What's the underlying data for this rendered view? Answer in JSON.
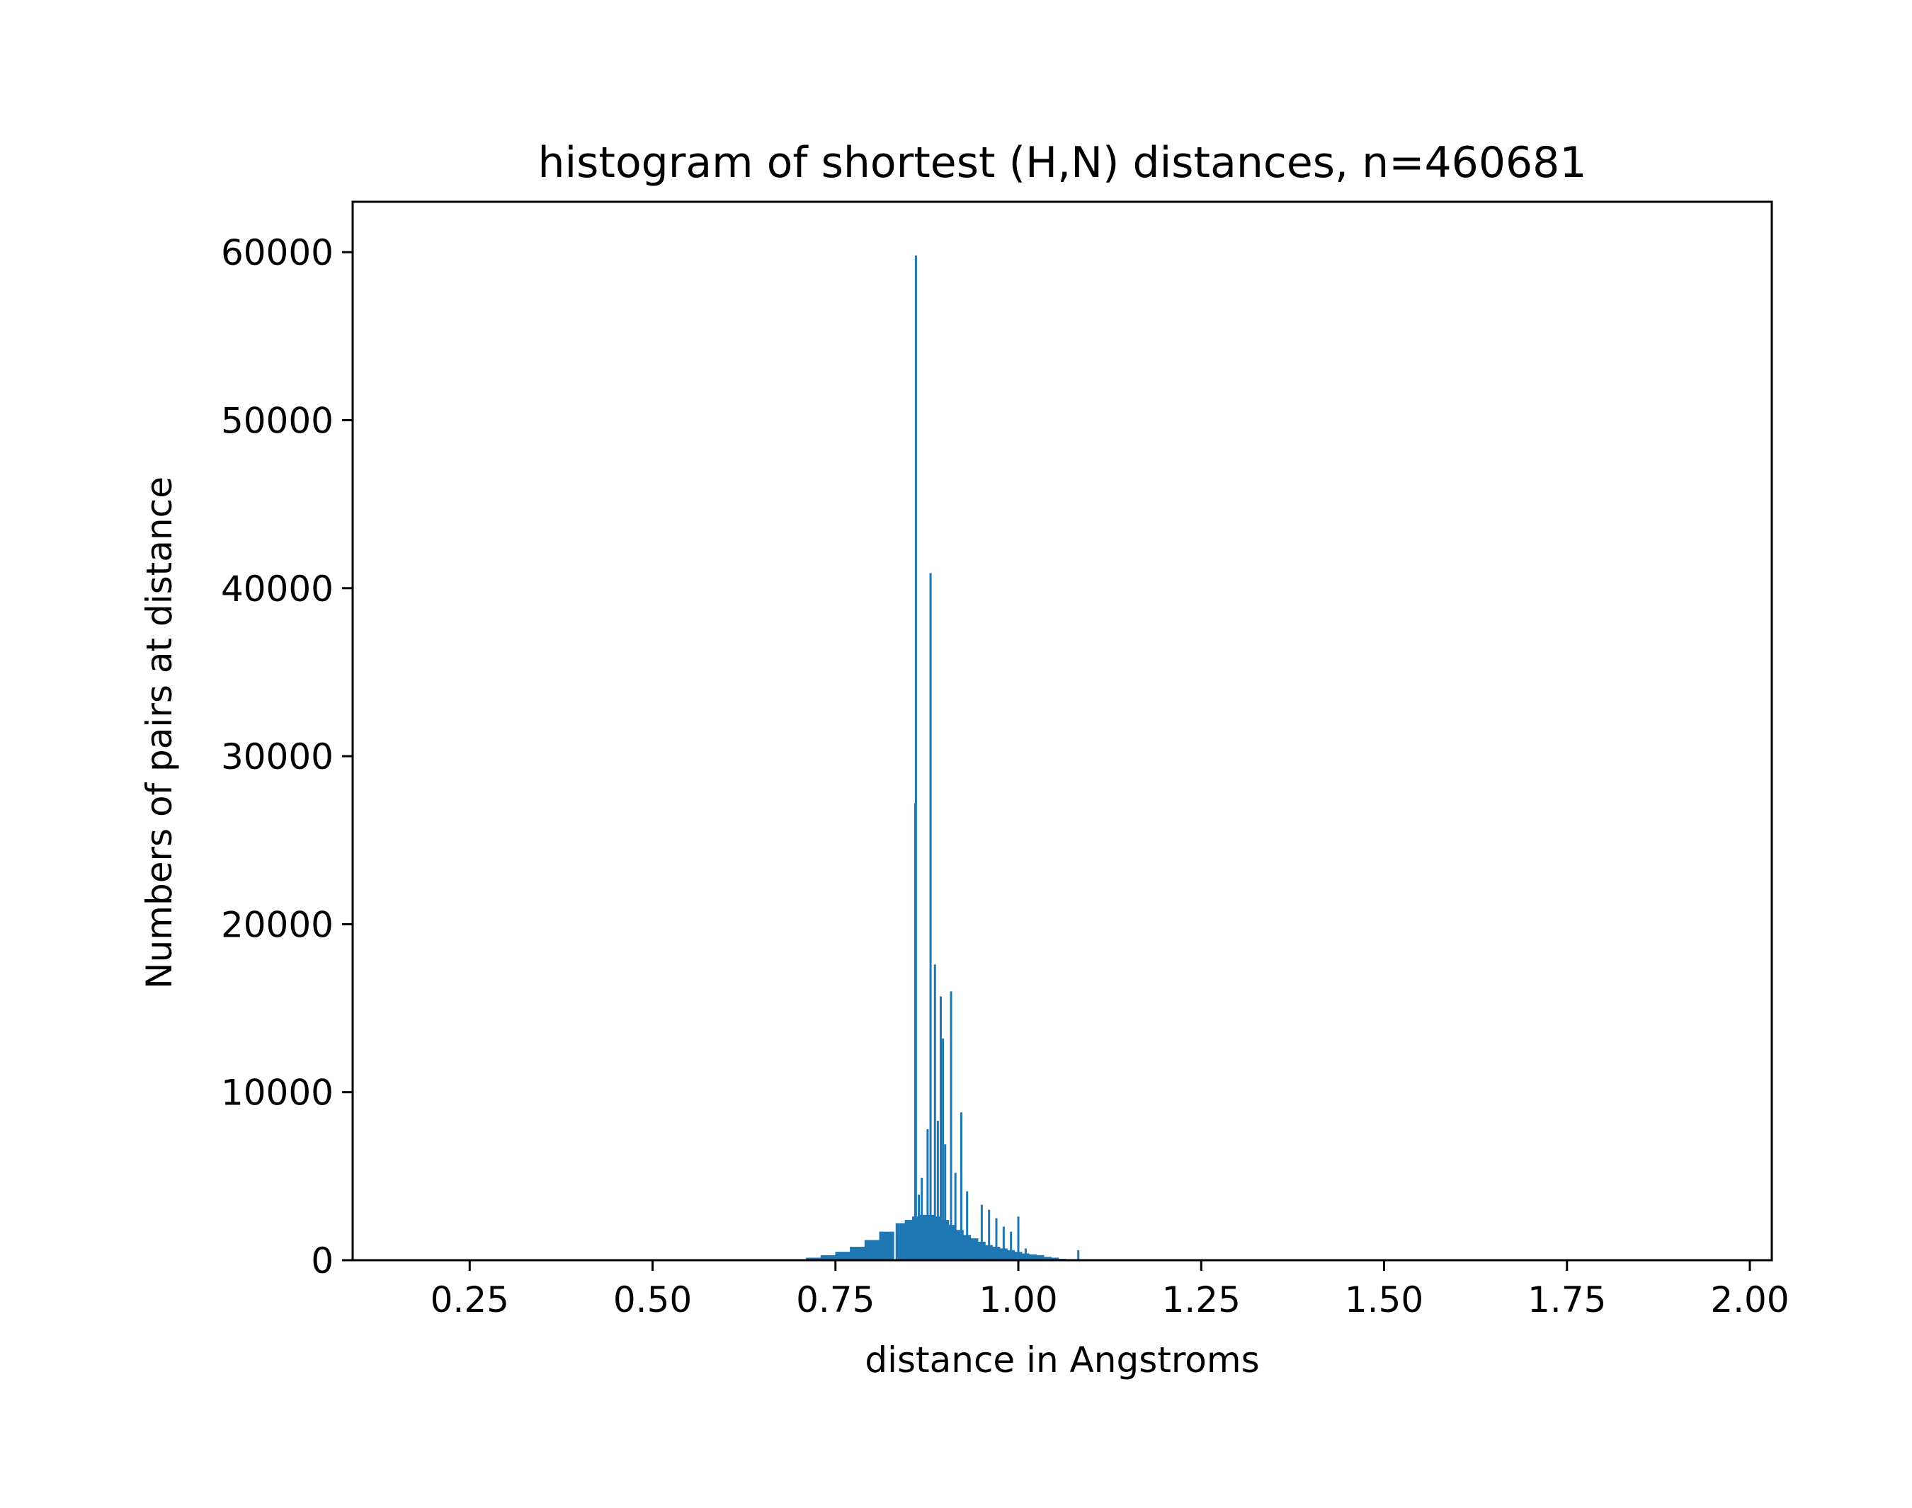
{
  "chart_data": {
    "type": "bar",
    "title": "histogram of shortest (H,N) distances, n=460681",
    "xlabel": "distance in Angstroms",
    "ylabel": "Numbers of pairs at distance",
    "xlim": [
      0.09,
      2.03
    ],
    "ylim": [
      0,
      63000
    ],
    "x_ticks": [
      0.25,
      0.5,
      0.75,
      1.0,
      1.25,
      1.5,
      1.75,
      2.0
    ],
    "x_tick_labels": [
      "0.25",
      "0.50",
      "0.75",
      "1.00",
      "1.25",
      "1.50",
      "1.75",
      "2.00"
    ],
    "y_ticks": [
      0,
      10000,
      20000,
      30000,
      40000,
      50000,
      60000
    ],
    "y_tick_labels": [
      "0",
      "10000",
      "20000",
      "30000",
      "40000",
      "50000",
      "60000"
    ],
    "bar_color": "#1f77b4",
    "grid": false,
    "legend": "none",
    "background_bins": {
      "x": [
        0.7,
        0.72,
        0.74,
        0.76,
        0.78,
        0.8,
        0.82,
        0.84,
        0.85,
        0.86,
        0.87,
        0.88,
        0.89,
        0.9,
        0.91,
        0.92,
        0.93,
        0.94,
        0.95,
        0.96,
        0.97,
        0.98,
        0.99,
        1.0,
        1.01,
        1.02,
        1.03,
        1.04,
        1.05,
        1.06
      ],
      "values": [
        60,
        150,
        300,
        500,
        800,
        1200,
        1700,
        2200,
        2400,
        2600,
        2700,
        2700,
        2600,
        2400,
        2100,
        1800,
        1500,
        1300,
        1100,
        900,
        800,
        700,
        600,
        500,
        400,
        350,
        300,
        200,
        150,
        80
      ]
    },
    "spikes": {
      "x": [
        0.86,
        0.859,
        0.864,
        0.868,
        0.876,
        0.88,
        0.886,
        0.89,
        0.894,
        0.897,
        0.9,
        0.908,
        0.914,
        0.922,
        0.93,
        0.95,
        0.96,
        0.97,
        0.98,
        0.99,
        1.0,
        1.01,
        1.082
      ],
      "values": [
        59800,
        27200,
        3900,
        4900,
        7800,
        40900,
        17600,
        8300,
        15700,
        13200,
        6900,
        16000,
        5200,
        8800,
        4100,
        3300,
        3000,
        2500,
        2000,
        1700,
        2600,
        700,
        600
      ]
    }
  }
}
